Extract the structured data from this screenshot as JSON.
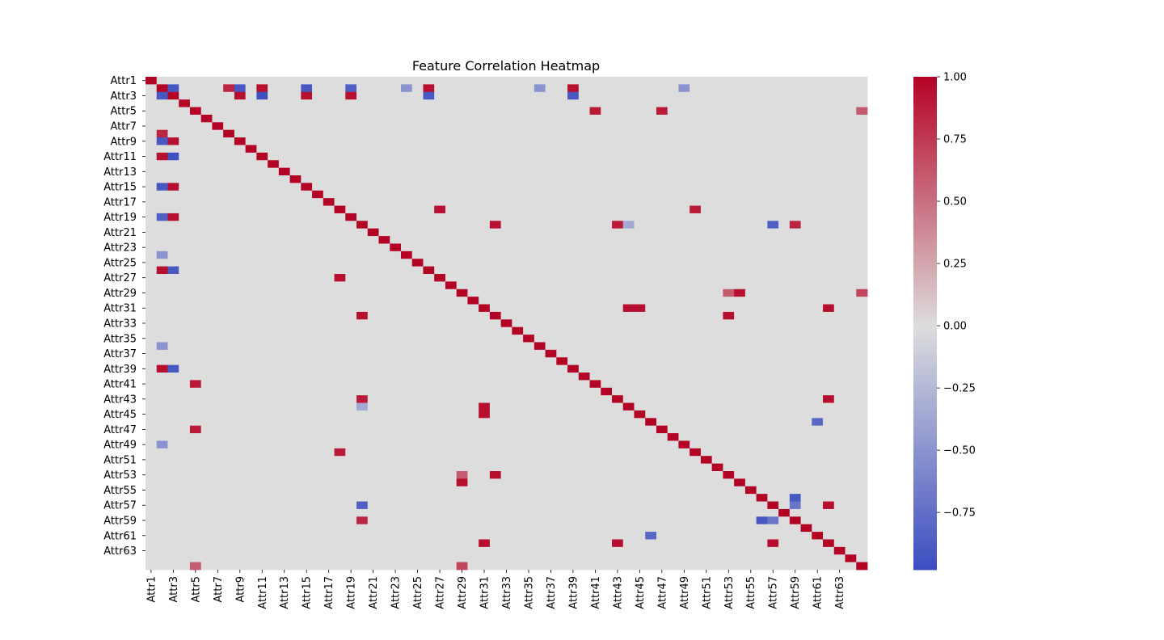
{
  "chart_data": {
    "type": "heatmap",
    "title": "Feature Correlation Heatmap",
    "xlabel": "",
    "ylabel": "",
    "colormap": "coolwarm",
    "color_min": "#3b4cc0",
    "color_mid": "#dddddd",
    "color_max": "#b40426",
    "n_rows": 65,
    "n_cols": 65,
    "x_tick_labels": [
      "Attr1",
      "Attr3",
      "Attr5",
      "Attr7",
      "Attr9",
      "Attr11",
      "Attr13",
      "Attr15",
      "Attr17",
      "Attr19",
      "Attr21",
      "Attr23",
      "Attr25",
      "Attr27",
      "Attr29",
      "Attr31",
      "Attr33",
      "Attr35",
      "Attr37",
      "Attr39",
      "Attr41",
      "Attr43",
      "Attr45",
      "Attr47",
      "Attr49",
      "Attr51",
      "Attr53",
      "Attr55",
      "Attr57",
      "Attr59",
      "Attr61",
      "Attr63"
    ],
    "y_tick_labels": [
      "Attr1",
      "Attr3",
      "Attr5",
      "Attr7",
      "Attr9",
      "Attr11",
      "Attr13",
      "Attr15",
      "Attr17",
      "Attr19",
      "Attr21",
      "Attr23",
      "Attr25",
      "Attr27",
      "Attr29",
      "Attr31",
      "Attr33",
      "Attr35",
      "Attr37",
      "Attr39",
      "Attr41",
      "Attr43",
      "Attr45",
      "Attr47",
      "Attr49",
      "Attr51",
      "Attr53",
      "Attr55",
      "Attr57",
      "Attr59",
      "Attr61",
      "Attr63"
    ],
    "tick_every": 2,
    "colorbar": {
      "vmin": -0.98,
      "vmax": 1.0,
      "ticks": [
        1.0,
        0.75,
        0.5,
        0.25,
        0.0,
        -0.25,
        -0.5,
        -0.75
      ],
      "tick_labels": [
        "1.00",
        "0.75",
        "0.50",
        "0.25",
        "0.00",
        "−0.25",
        "−0.50",
        "−0.75"
      ]
    },
    "diagonal_value": 1.0,
    "estimated_cells": [
      {
        "row": 1,
        "col": 2,
        "value": -0.9
      },
      {
        "row": 1,
        "col": 7,
        "value": 0.85
      },
      {
        "row": 1,
        "col": 8,
        "value": -0.9
      },
      {
        "row": 1,
        "col": 10,
        "value": 0.95
      },
      {
        "row": 1,
        "col": 14,
        "value": -0.9
      },
      {
        "row": 1,
        "col": 18,
        "value": -0.85
      },
      {
        "row": 1,
        "col": 25,
        "value": 0.95
      },
      {
        "row": 1,
        "col": 38,
        "value": 0.95
      },
      {
        "row": 1,
        "col": 23,
        "value": -0.5
      },
      {
        "row": 1,
        "col": 35,
        "value": -0.5
      },
      {
        "row": 1,
        "col": 48,
        "value": -0.5
      },
      {
        "row": 2,
        "col": 8,
        "value": 0.95
      },
      {
        "row": 2,
        "col": 10,
        "value": -0.95
      },
      {
        "row": 2,
        "col": 14,
        "value": 0.95
      },
      {
        "row": 2,
        "col": 18,
        "value": 0.95
      },
      {
        "row": 2,
        "col": 25,
        "value": -0.9
      },
      {
        "row": 2,
        "col": 38,
        "value": -0.9
      },
      {
        "row": 4,
        "col": 40,
        "value": 0.9
      },
      {
        "row": 4,
        "col": 46,
        "value": 0.9
      },
      {
        "row": 4,
        "col": 64,
        "value": 0.6
      },
      {
        "row": 17,
        "col": 26,
        "value": 0.95
      },
      {
        "row": 17,
        "col": 49,
        "value": 0.9
      },
      {
        "row": 19,
        "col": 31,
        "value": 0.95
      },
      {
        "row": 19,
        "col": 42,
        "value": 0.9
      },
      {
        "row": 19,
        "col": 43,
        "value": -0.35
      },
      {
        "row": 19,
        "col": 56,
        "value": -0.85
      },
      {
        "row": 19,
        "col": 58,
        "value": 0.85
      },
      {
        "row": 28,
        "col": 52,
        "value": 0.6
      },
      {
        "row": 28,
        "col": 53,
        "value": 0.95
      },
      {
        "row": 28,
        "col": 64,
        "value": 0.7
      },
      {
        "row": 30,
        "col": 43,
        "value": 0.95
      },
      {
        "row": 30,
        "col": 44,
        "value": 0.95
      },
      {
        "row": 30,
        "col": 61,
        "value": 0.95
      },
      {
        "row": 31,
        "col": 52,
        "value": 0.95
      },
      {
        "row": 42,
        "col": 61,
        "value": 0.95
      },
      {
        "row": 45,
        "col": 60,
        "value": -0.8
      },
      {
        "row": 55,
        "col": 58,
        "value": -0.9
      },
      {
        "row": 56,
        "col": 58,
        "value": -0.7
      },
      {
        "row": 56,
        "col": 61,
        "value": 0.95
      }
    ]
  }
}
